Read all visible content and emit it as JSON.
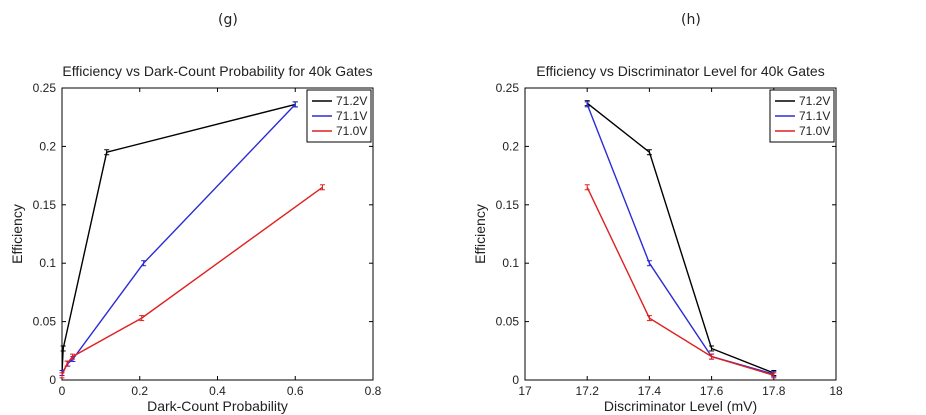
{
  "panels": {
    "g": "(g)",
    "h": "(h)"
  },
  "colors": {
    "v712": "#000000",
    "v711": "#2b2bd6",
    "v710": "#e02020"
  },
  "chart_data": [
    {
      "type": "line",
      "title": "Efficiency vs Dark-Count Probability for 40k Gates",
      "xlabel": "Dark-Count Probability",
      "ylabel": "Efficiency",
      "xlim": [
        0,
        0.8
      ],
      "ylim": [
        0,
        0.25
      ],
      "xticks": [
        "0",
        "0.2",
        "0.4",
        "0.6",
        "0.8"
      ],
      "yticks": [
        "0",
        "0.05",
        "0.1",
        "0.15",
        "0.2",
        "0.25"
      ],
      "legend_position": "top-right",
      "grid": false,
      "series": [
        {
          "name": "71.2V",
          "color": "#000000",
          "x": [
            0.0,
            0.003,
            0.115,
            0.6
          ],
          "y": [
            0.006,
            0.027,
            0.195,
            0.236
          ]
        },
        {
          "name": "71.1V",
          "color": "#2b2bd6",
          "x": [
            0.0,
            0.015,
            0.028,
            0.21,
            0.6
          ],
          "y": [
            0.006,
            0.014,
            0.018,
            0.1,
            0.236
          ]
        },
        {
          "name": "71.0V",
          "color": "#e02020",
          "x": [
            0.0,
            0.013,
            0.027,
            0.205,
            0.67
          ],
          "y": [
            0.004,
            0.014,
            0.02,
            0.053,
            0.165
          ]
        }
      ]
    },
    {
      "type": "line",
      "title": "Efficiency vs Discriminator Level for 40k Gates",
      "xlabel": "Discriminator Level (mV)",
      "ylabel": "Efficiency",
      "xlim": [
        17,
        18
      ],
      "ylim": [
        0,
        0.25
      ],
      "xticks": [
        "17",
        "17.2",
        "17.4",
        "17.6",
        "17.8",
        "18"
      ],
      "yticks": [
        "0",
        "0.05",
        "0.1",
        "0.15",
        "0.2",
        "0.25"
      ],
      "legend_position": "top-right",
      "grid": false,
      "series": [
        {
          "name": "71.2V",
          "color": "#000000",
          "x": [
            17.2,
            17.4,
            17.6,
            17.8
          ],
          "y": [
            0.237,
            0.195,
            0.027,
            0.006
          ]
        },
        {
          "name": "71.1V",
          "color": "#2b2bd6",
          "x": [
            17.2,
            17.4,
            17.6,
            17.8
          ],
          "y": [
            0.236,
            0.1,
            0.02,
            0.005
          ]
        },
        {
          "name": "71.0V",
          "color": "#e02020",
          "x": [
            17.2,
            17.4,
            17.6,
            17.8
          ],
          "y": [
            0.165,
            0.053,
            0.02,
            0.004
          ]
        }
      ]
    }
  ]
}
